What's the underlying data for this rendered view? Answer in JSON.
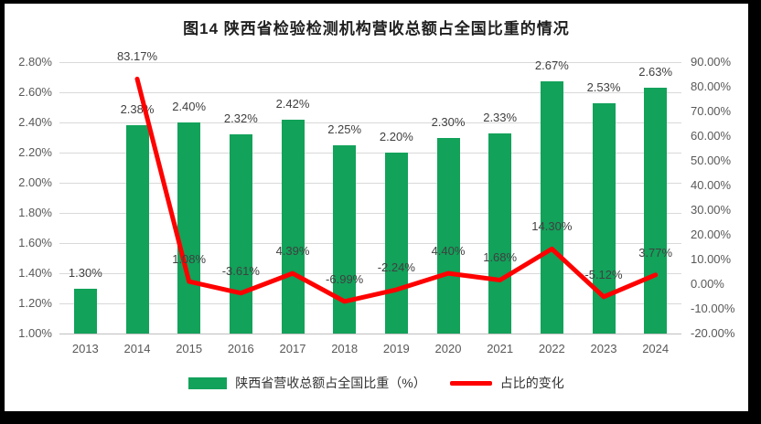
{
  "title": "图14  陕西省检验检测机构营收总额占全国比重的情况",
  "colors": {
    "frame_bg": "#000000",
    "card_bg": "#ffffff",
    "bar_green": "#12a25a",
    "line_red": "#ff0000",
    "gridline": "#d9d9d9",
    "axis_line": "#bfbfbf",
    "tick_text": "#595959",
    "label_text": "#404040"
  },
  "chart_data": {
    "type": "combo-bar-line",
    "title": "图14  陕西省检验检测机构营收总额占全国比重的情况",
    "categories": [
      "2013",
      "2014",
      "2015",
      "2016",
      "2017",
      "2018",
      "2019",
      "2020",
      "2021",
      "2022",
      "2023",
      "2024"
    ],
    "series": [
      {
        "name": "陕西省营收总额占全国比重（%）",
        "type": "bar",
        "axis": "left",
        "color": "#12a25a",
        "values": [
          1.3,
          2.38,
          2.4,
          2.32,
          2.42,
          2.25,
          2.2,
          2.3,
          2.33,
          2.67,
          2.53,
          2.63
        ],
        "labels": [
          "1.30%",
          "2.38%",
          "2.40%",
          "2.32%",
          "2.42%",
          "2.25%",
          "2.20%",
          "2.30%",
          "2.33%",
          "2.67%",
          "2.53%",
          "2.63%"
        ]
      },
      {
        "name": "占比的变化",
        "type": "line",
        "axis": "right",
        "color": "#ff0000",
        "values": [
          null,
          83.17,
          1.08,
          -3.61,
          4.39,
          -6.99,
          -2.24,
          4.4,
          1.68,
          14.3,
          -5.12,
          3.77
        ],
        "labels": [
          null,
          "83.17%",
          "1.08%",
          "-3.61%",
          "4.39%",
          "-6.99%",
          "-2.24%",
          "4.40%",
          "1.68%",
          "14.30%",
          "-5.12%",
          "3.77%"
        ]
      }
    ],
    "left_axis": {
      "min": 1.0,
      "max": 2.8,
      "ticks": [
        "2.80%",
        "2.60%",
        "2.40%",
        "2.20%",
        "2.00%",
        "1.80%",
        "1.60%",
        "1.40%",
        "1.20%",
        "1.00%"
      ]
    },
    "right_axis": {
      "min": -20,
      "max": 90,
      "ticks": [
        "90.00%",
        "80.00%",
        "70.00%",
        "60.00%",
        "50.00%",
        "40.00%",
        "30.00%",
        "20.00%",
        "10.00%",
        "0.00%",
        "-10.00%",
        "-20.00%"
      ]
    },
    "grid": true,
    "legend_position": "bottom"
  }
}
